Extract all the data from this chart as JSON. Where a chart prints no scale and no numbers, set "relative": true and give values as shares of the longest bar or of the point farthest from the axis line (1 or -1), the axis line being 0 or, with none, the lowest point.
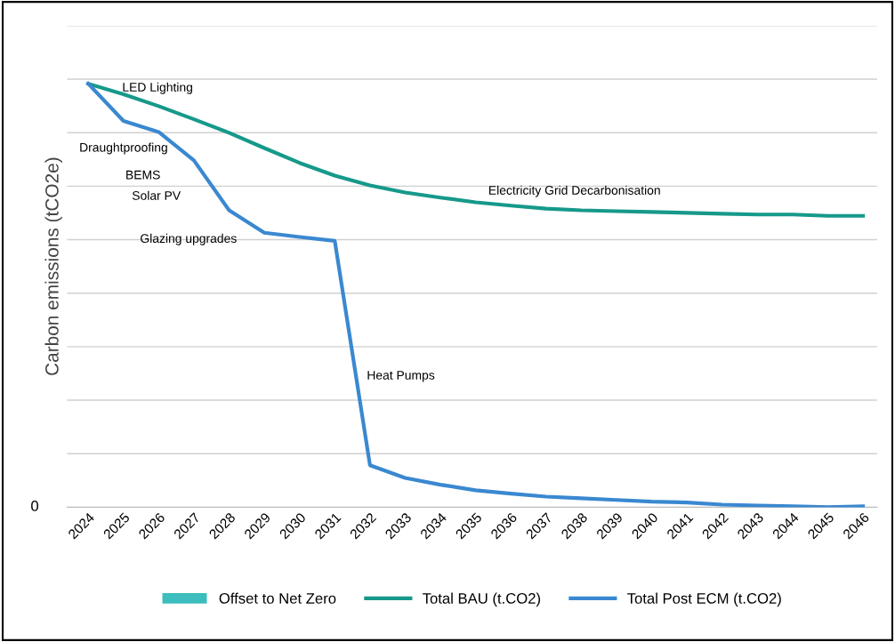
{
  "chart_data": {
    "type": "line",
    "relative": true,
    "ylabel": "Carbon emissions (tCO2e)",
    "categories": [
      "2024",
      "2025",
      "2026",
      "2027",
      "2028",
      "2029",
      "2030",
      "2031",
      "2032",
      "2033",
      "2034",
      "2035",
      "2036",
      "2037",
      "2038",
      "2039",
      "2040",
      "2041",
      "2042",
      "2043",
      "2044",
      "2045",
      "2046"
    ],
    "series": [
      {
        "name": "Offset to Net Zero",
        "type": "area",
        "color": "#3dbdbd",
        "values": [
          null,
          null,
          null,
          null,
          null,
          null,
          null,
          null,
          null,
          null,
          null,
          null,
          null,
          null,
          null,
          null,
          null,
          null,
          null,
          null,
          null,
          null,
          null
        ]
      },
      {
        "name": "Total BAU (t.CO2)",
        "color": "#16998a",
        "values": [
          1,
          0.975,
          0.947,
          0.916,
          0.884,
          0.848,
          0.813,
          0.783,
          0.76,
          0.743,
          0.731,
          0.72,
          0.712,
          0.705,
          0.701,
          0.699,
          0.697,
          0.695,
          0.693,
          0.691,
          0.691,
          0.688,
          0.688
        ]
      },
      {
        "name": "Total Post ECM (t.CO2)",
        "color": "#3a88d0",
        "values": [
          1,
          0.912,
          0.886,
          0.819,
          0.701,
          0.648,
          0.638,
          0.629,
          0.099,
          0.069,
          0.053,
          0.04,
          0.032,
          0.025,
          0.021,
          0.017,
          0.013,
          0.011,
          0.006,
          0.004,
          0.002,
          0,
          0.002
        ]
      }
    ],
    "grid": "y",
    "legend": "bottom",
    "marker": "none",
    "line_style": "solid",
    "annotations": [
      "LED Lighting",
      "Draughtproofing",
      "BEMS",
      "Solar PV",
      "Glazing upgrades",
      "Heat Pumps",
      "Electricity Grid Decarbonisation",
      "0"
    ]
  }
}
